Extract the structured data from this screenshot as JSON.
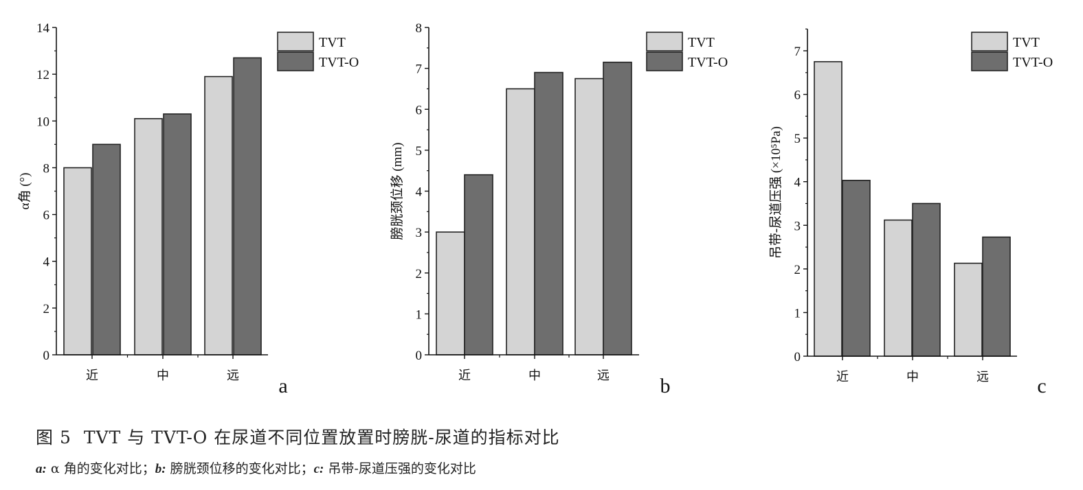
{
  "chart_data": [
    {
      "type": "bar",
      "panel_label": "a",
      "categories": [
        "近",
        "中",
        "远"
      ],
      "series": [
        {
          "name": "TVT",
          "values": [
            8.0,
            10.1,
            11.9
          ]
        },
        {
          "name": "TVT-O",
          "values": [
            9.0,
            10.3,
            12.7
          ]
        }
      ],
      "ylabel": "α角 (°)",
      "ylim": [
        0,
        14
      ],
      "yticks": [
        "0",
        "2",
        "4",
        "6",
        "8",
        "10",
        "12",
        "14"
      ],
      "legend": "top-right",
      "grid": false
    },
    {
      "type": "bar",
      "panel_label": "b",
      "categories": [
        "近",
        "中",
        "远"
      ],
      "series": [
        {
          "name": "TVT",
          "values": [
            3.0,
            6.5,
            6.75
          ]
        },
        {
          "name": "TVT-O",
          "values": [
            4.4,
            6.9,
            7.15
          ]
        }
      ],
      "ylabel": "膀胱颈位移 (mm)",
      "ylim": [
        0,
        8
      ],
      "yticks": [
        "0",
        "1",
        "2",
        "3",
        "4",
        "5",
        "6",
        "7",
        "8"
      ],
      "legend": "top-right",
      "grid": false
    },
    {
      "type": "bar",
      "panel_label": "c",
      "categories": [
        "近",
        "中",
        "远"
      ],
      "series": [
        {
          "name": "TVT",
          "values": [
            6.75,
            3.12,
            2.13
          ]
        },
        {
          "name": "TVT-O",
          "values": [
            4.03,
            3.5,
            2.73
          ]
        }
      ],
      "ylabel": "吊带-尿道压强 (×10⁵Pa)",
      "ylim": [
        0,
        7.5
      ],
      "yticks": [
        "0",
        "1",
        "2",
        "3",
        "4",
        "5",
        "6",
        "7"
      ],
      "legend": "top-right",
      "grid": false
    }
  ],
  "colors": {
    "TVT": "#d4d4d4",
    "TVT-O": "#6e6e6e",
    "axis": "#111111"
  },
  "caption": {
    "figure_number": "图 5",
    "title": "TVT 与 TVT-O 在尿道不同位置放置时膀胱-尿道的指标对比"
  },
  "subcaption": {
    "a_key": "a:",
    "a_text": " α 角的变化对比；",
    "b_key": "b:",
    "b_text": " 膀胱颈位移的变化对比；",
    "c_key": "c:",
    "c_text": " 吊带-尿道压强的变化对比"
  }
}
